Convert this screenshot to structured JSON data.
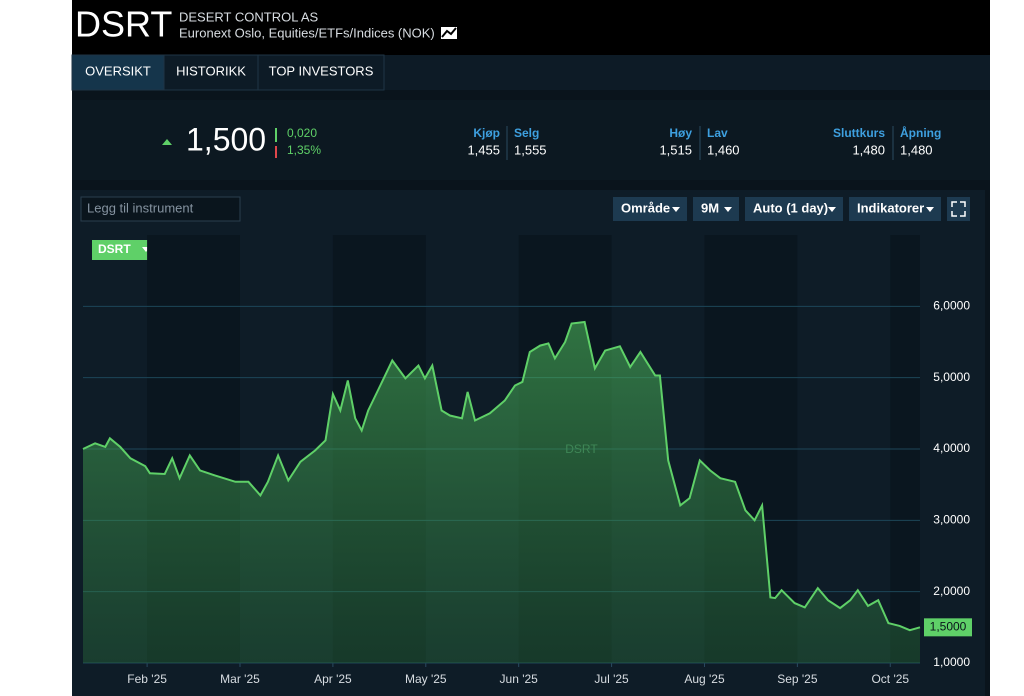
{
  "header": {
    "symbol": "DSRT",
    "name": "DESERT CONTROL AS",
    "market": "Euronext Oslo, Equities/ETFs/Indices  (NOK)"
  },
  "tabs": [
    "OVERSIKT",
    "HISTORIKK",
    "TOP INVESTORS"
  ],
  "quote": {
    "last": "1,500",
    "change": "0,020",
    "change_pct": "1,35%",
    "fields": [
      {
        "label": "Kjøp",
        "value": "1,455"
      },
      {
        "label": "Selg",
        "value": "1,555"
      },
      {
        "label": "Høy",
        "value": "1,515"
      },
      {
        "label": "Lav",
        "value": "1,460"
      },
      {
        "label": "Sluttkurs",
        "value": "1,480"
      },
      {
        "label": "Åpning",
        "value": "1,480"
      }
    ]
  },
  "toolbar": {
    "search_placeholder": "Legg til instrument",
    "buttons": [
      "Område",
      "9M",
      "Auto (1 day)",
      "Indikatorer"
    ]
  },
  "chart_data": {
    "type": "area",
    "watermark": "DSRT",
    "last_value_label": "1,5000",
    "xlim": [
      1.31,
      10.32
    ],
    "ylim": [
      1,
      7
    ],
    "xticks": [
      {
        "value": 2,
        "label": "Feb '25"
      },
      {
        "value": 3,
        "label": "Mar '25"
      },
      {
        "value": 4,
        "label": "Apr '25"
      },
      {
        "value": 5,
        "label": "May '25"
      },
      {
        "value": 6,
        "label": "Jun '25"
      },
      {
        "value": 7,
        "label": "Jul '25"
      },
      {
        "value": 8,
        "label": "Aug '25"
      },
      {
        "value": 9,
        "label": "Sep '25"
      },
      {
        "value": 10,
        "label": "Oct '25"
      }
    ],
    "yticks": [
      {
        "value": 1,
        "label": "1,0000"
      },
      {
        "value": 2,
        "label": "2,0000"
      },
      {
        "value": 3,
        "label": "3,0000"
      },
      {
        "value": 4,
        "label": "4,0000"
      },
      {
        "value": 5,
        "label": "5,0000"
      },
      {
        "value": 6,
        "label": "6,0000"
      }
    ],
    "grid": true,
    "series": [
      {
        "name": "DSRT",
        "color": "#5fd068",
        "x": [
          1.31,
          1.44,
          1.55,
          1.6,
          1.71,
          1.82,
          1.98,
          2.03,
          2.19,
          2.27,
          2.35,
          2.46,
          2.57,
          2.73,
          2.95,
          3.09,
          3.22,
          3.3,
          3.41,
          3.52,
          3.65,
          3.81,
          3.92,
          4.0,
          4.08,
          4.16,
          4.24,
          4.31,
          4.38,
          4.51,
          4.64,
          4.78,
          4.92,
          4.99,
          5.07,
          5.17,
          5.26,
          5.39,
          5.45,
          5.53,
          5.69,
          5.85,
          5.96,
          6.04,
          6.12,
          6.23,
          6.32,
          6.39,
          6.5,
          6.57,
          6.71,
          6.82,
          6.93,
          7.09,
          7.2,
          7.31,
          7.47,
          7.52,
          7.61,
          7.74,
          7.84,
          7.95,
          8.06,
          8.17,
          8.33,
          8.44,
          8.54,
          8.62,
          8.71,
          8.76,
          8.83,
          8.97,
          9.08,
          9.22,
          9.33,
          9.46,
          9.57,
          9.65,
          9.76,
          9.87,
          9.98,
          10.1,
          10.21,
          10.32
        ],
        "values": [
          4.0,
          4.08,
          4.03,
          4.15,
          4.03,
          3.87,
          3.76,
          3.66,
          3.65,
          3.87,
          3.59,
          3.91,
          3.7,
          3.63,
          3.54,
          3.54,
          3.35,
          3.54,
          3.91,
          3.56,
          3.82,
          3.98,
          4.12,
          4.77,
          4.54,
          4.96,
          4.43,
          4.26,
          4.54,
          4.89,
          5.24,
          4.99,
          5.17,
          4.99,
          5.17,
          4.54,
          4.47,
          4.43,
          4.8,
          4.4,
          4.5,
          4.68,
          4.89,
          4.94,
          5.36,
          5.45,
          5.48,
          5.27,
          5.5,
          5.76,
          5.78,
          5.13,
          5.38,
          5.44,
          5.15,
          5.36,
          5.03,
          5.03,
          3.84,
          3.21,
          3.31,
          3.84,
          3.7,
          3.59,
          3.54,
          3.14,
          3.0,
          3.21,
          1.92,
          1.91,
          2.02,
          1.84,
          1.78,
          2.05,
          1.88,
          1.77,
          1.88,
          2.02,
          1.8,
          1.88,
          1.56,
          1.52,
          1.46,
          1.5
        ]
      }
    ]
  }
}
